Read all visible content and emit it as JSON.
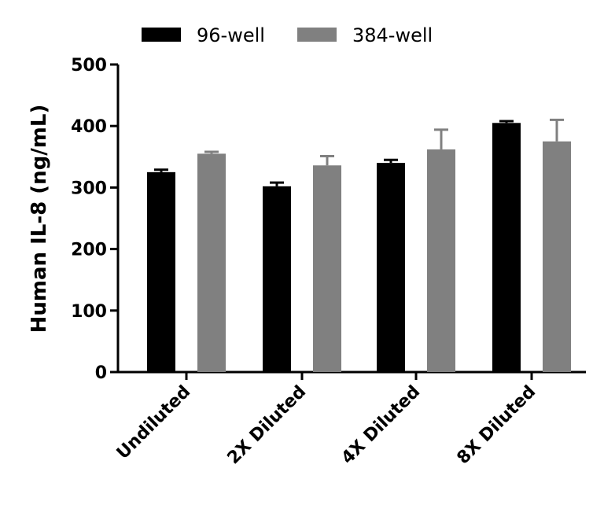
{
  "chart_data": {
    "type": "bar",
    "title": "",
    "xlabel": "",
    "ylabel": "Human IL-8 (ng/mL)",
    "ylim": [
      0,
      500
    ],
    "yticks": [
      0,
      100,
      200,
      300,
      400,
      500
    ],
    "categories": [
      "Undiluted",
      "2X Diluted",
      "4X Diluted",
      "8X Diluted"
    ],
    "series": [
      {
        "name": "96-well",
        "color": "#000000",
        "values": [
          325,
          302,
          340,
          405
        ],
        "errors": [
          4,
          6,
          5,
          3
        ]
      },
      {
        "name": "384-well",
        "color": "#808080",
        "values": [
          355,
          336,
          362,
          375
        ],
        "errors": [
          3,
          15,
          32,
          35
        ]
      }
    ],
    "legend_position": "top"
  }
}
